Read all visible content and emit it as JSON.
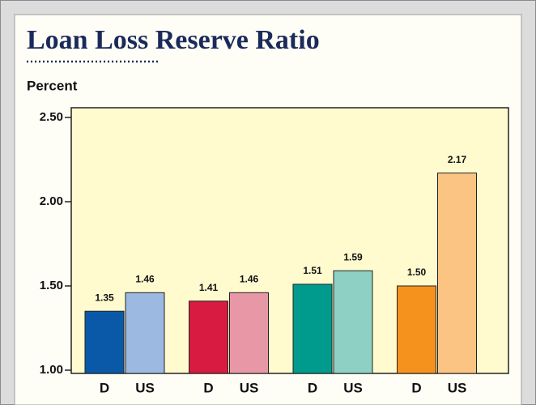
{
  "chart_data": {
    "type": "bar",
    "title": "Loan Loss Reserve Ratio",
    "ylabel": "Percent",
    "categories": [
      "D",
      "US",
      "D",
      "US",
      "D",
      "US",
      "D",
      "US"
    ],
    "values": [
      1.35,
      1.46,
      1.41,
      1.46,
      1.51,
      1.59,
      1.5,
      2.17
    ],
    "value_labels": [
      "1.35",
      "1.46",
      "1.41",
      "1.46",
      "1.51",
      "1.59",
      "1.50",
      "2.17"
    ],
    "colors": [
      "#0a59a8",
      "#9bb9e1",
      "#d81b40",
      "#e897a7",
      "#009b8c",
      "#8fd0c5",
      "#f5921e",
      "#fcc483"
    ],
    "ylim": [
      1.0,
      2.5
    ],
    "yticks": [
      {
        "value": 1.0,
        "label": "1.00"
      },
      {
        "value": 1.5,
        "label": "1.50"
      },
      {
        "value": 2.0,
        "label": "2.00"
      },
      {
        "value": 2.5,
        "label": "2.50"
      }
    ],
    "grid": false
  }
}
